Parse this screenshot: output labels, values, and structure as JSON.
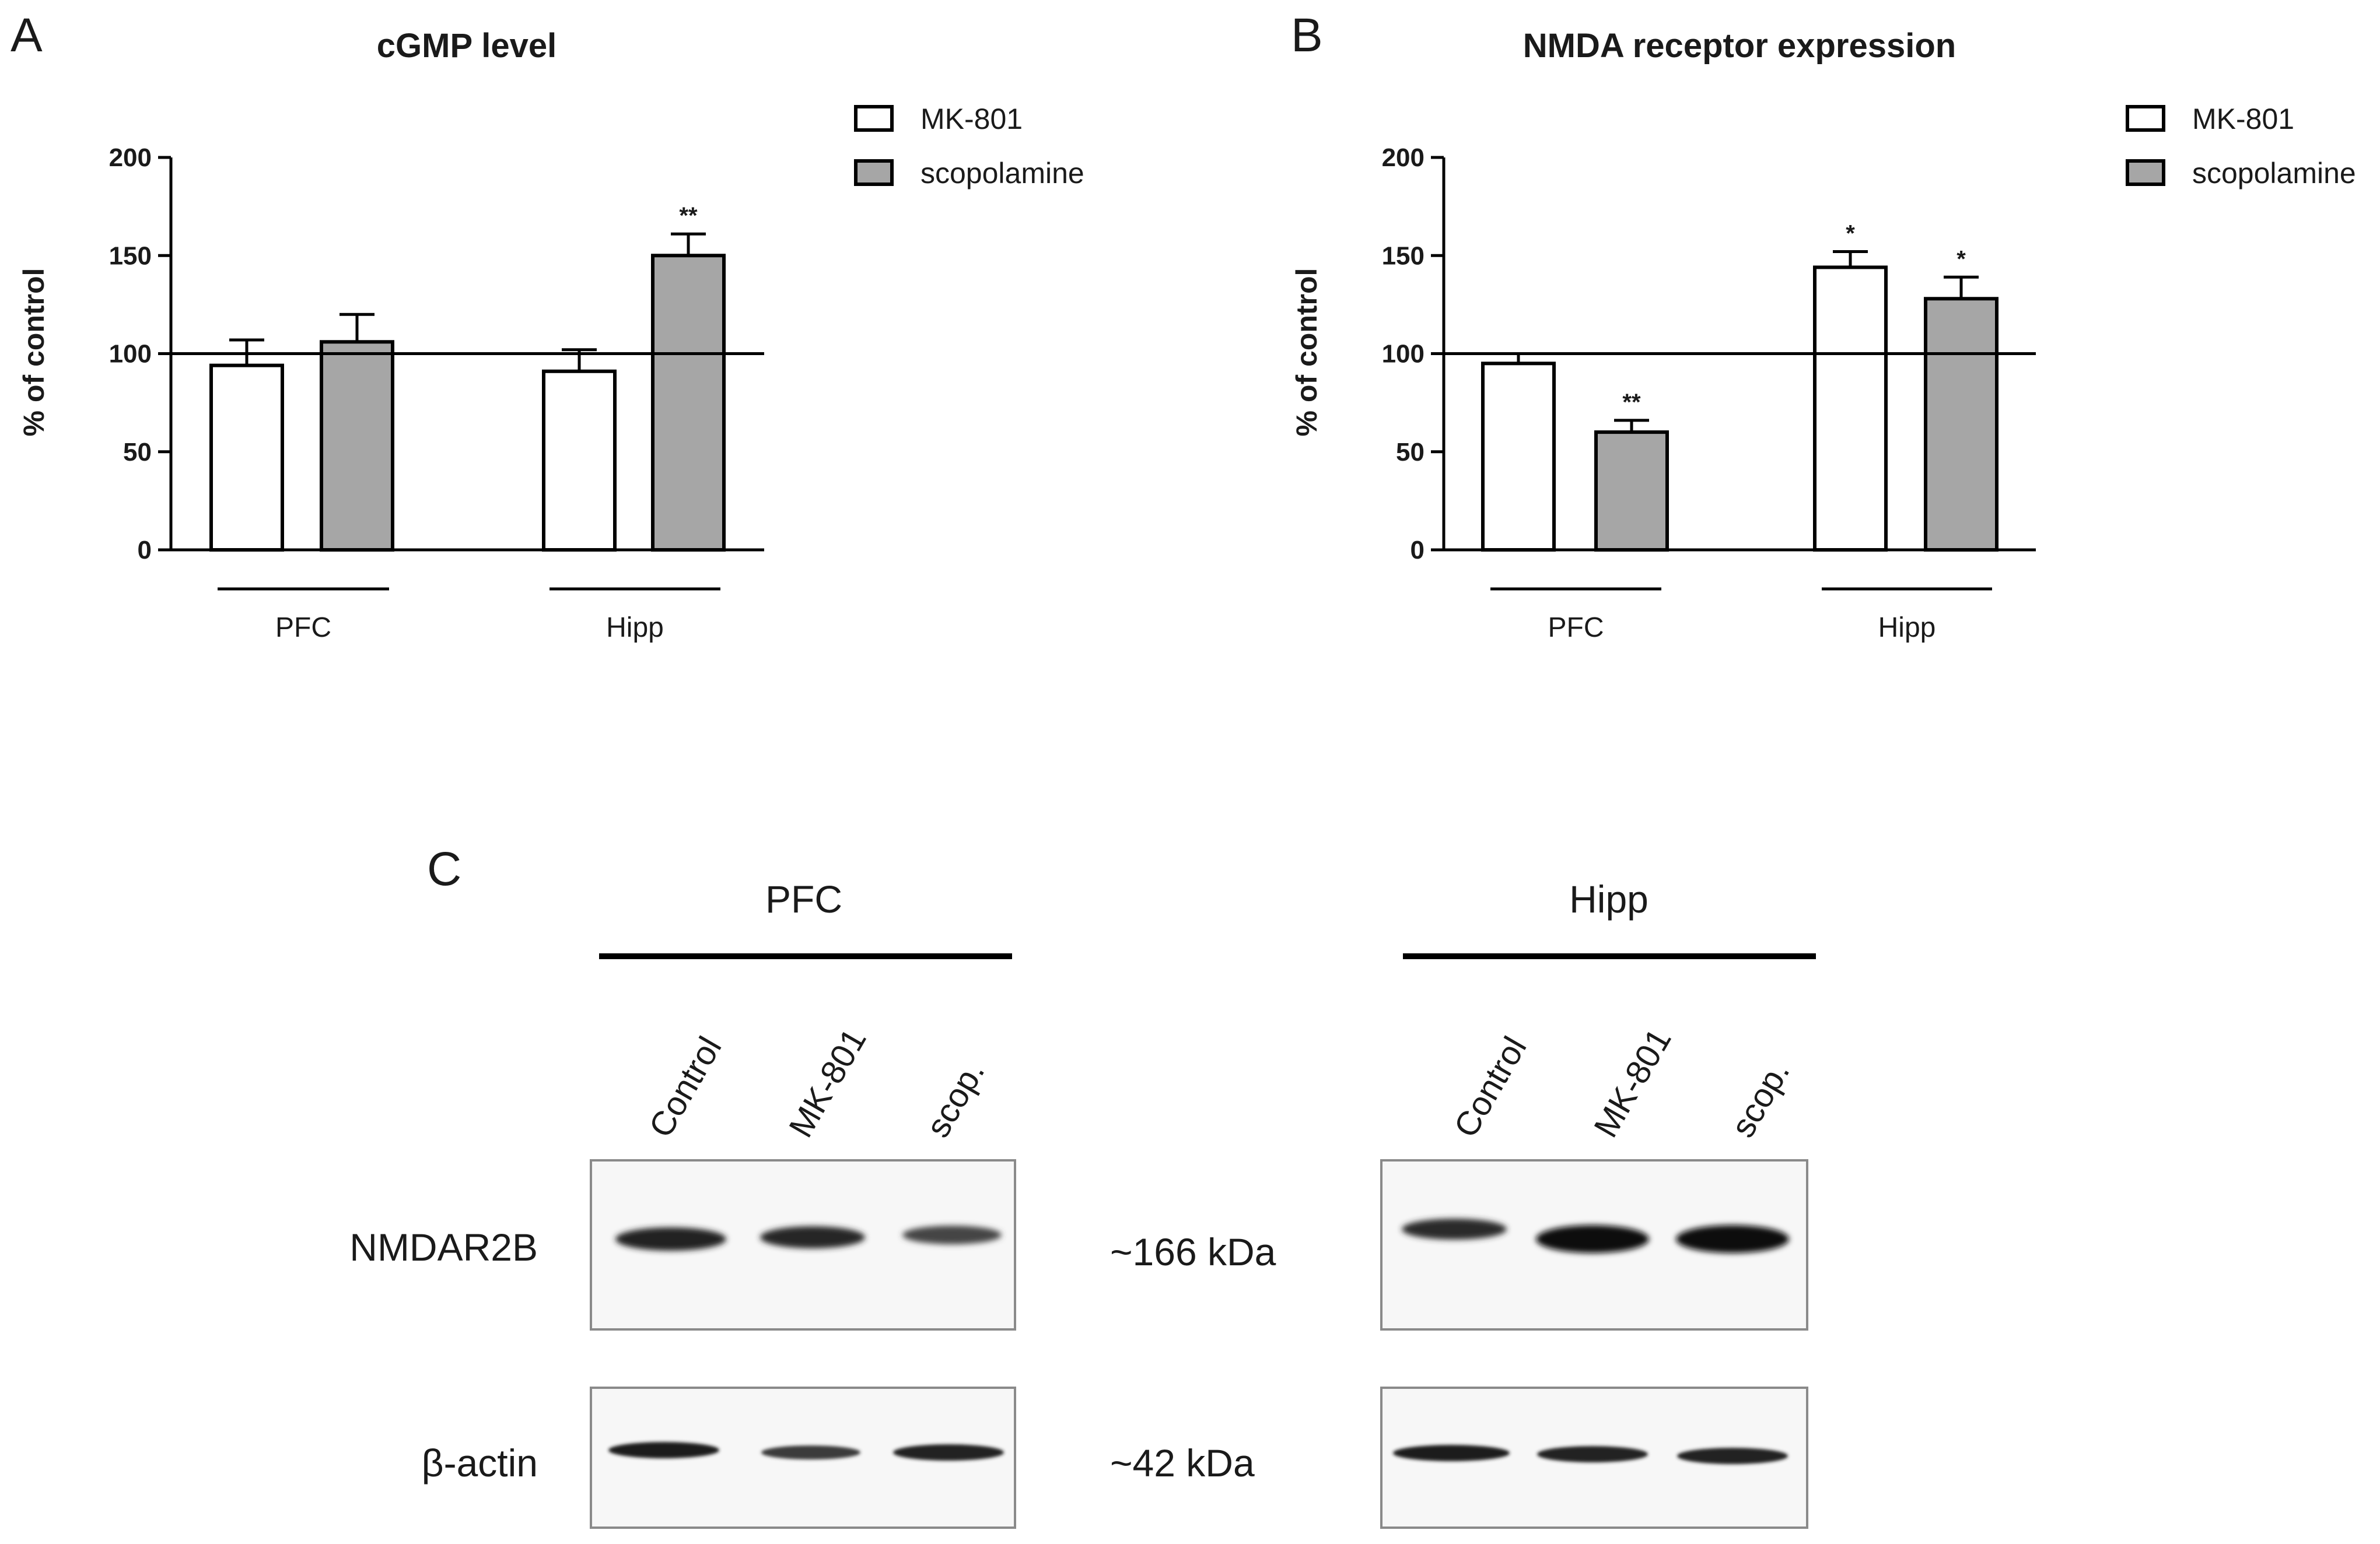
{
  "chart_data": [
    {
      "type": "bar",
      "panel": "A",
      "title": "cGMP level",
      "ylabel": "% of control",
      "xlabel": "",
      "ylim": [
        0,
        200
      ],
      "yticks": [
        0,
        50,
        100,
        150,
        200
      ],
      "reference_line": 100,
      "categories": [
        "PFC",
        "Hipp"
      ],
      "series": [
        {
          "name": "MK-801",
          "color": "#ffffff",
          "values": [
            94,
            91
          ],
          "errors": [
            13,
            11
          ],
          "significance": [
            "",
            ""
          ]
        },
        {
          "name": "scopolamine",
          "color": "#a6a6a6",
          "values": [
            106,
            150
          ],
          "errors": [
            14,
            11
          ],
          "significance": [
            "",
            "**"
          ]
        }
      ],
      "legend_position": "top-right",
      "grid": false
    },
    {
      "type": "bar",
      "panel": "B",
      "title": "NMDA receptor expression",
      "ylabel": "% of control",
      "xlabel": "",
      "ylim": [
        0,
        200
      ],
      "yticks": [
        0,
        50,
        100,
        150,
        200
      ],
      "reference_line": 100,
      "categories": [
        "PFC",
        "Hipp"
      ],
      "series": [
        {
          "name": "MK-801",
          "color": "#ffffff",
          "values": [
            95,
            144
          ],
          "errors": [
            5,
            8
          ],
          "significance": [
            "",
            "*"
          ]
        },
        {
          "name": "scopolamine",
          "color": "#a6a6a6",
          "values": [
            60,
            128
          ],
          "errors": [
            6,
            11
          ],
          "significance": [
            "**",
            "*"
          ]
        }
      ],
      "legend_position": "top-right",
      "grid": false
    }
  ],
  "blot": {
    "panel": "C",
    "regions": [
      {
        "label": "PFC",
        "lanes": [
          "Control",
          "MK-801",
          "scop."
        ]
      },
      {
        "label": "Hipp",
        "lanes": [
          "Control",
          "MK-801",
          "scop."
        ]
      }
    ],
    "rows": [
      {
        "label": "NMDAR2B",
        "kda": "~166 kDa"
      },
      {
        "label": "β-actin",
        "kda": "~42 kDa"
      }
    ]
  }
}
